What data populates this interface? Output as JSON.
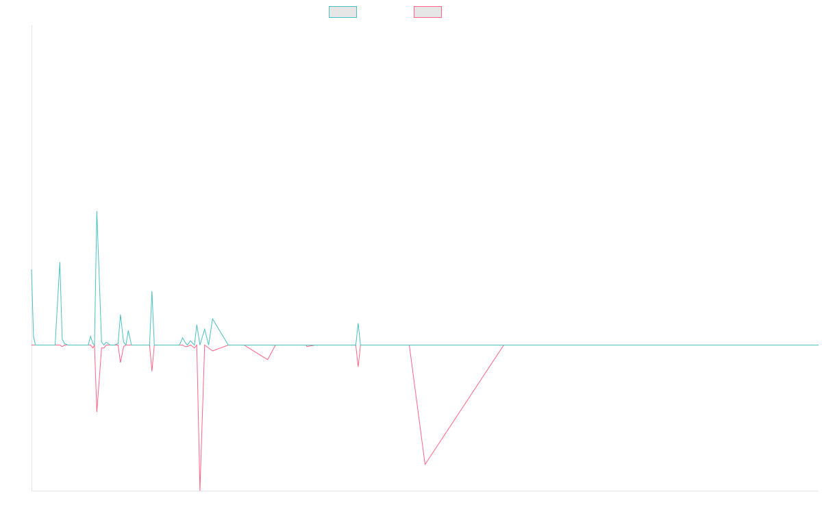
{
  "colors": {
    "series_a": "#4bc0c0",
    "series_b": "#ff6384",
    "legend_fill": "#e6e6e6",
    "axis": "#e5e5e5",
    "background": "#ffffff"
  },
  "chart_data": {
    "type": "line",
    "grid": false,
    "legend_position": "top-center",
    "xlim": [
      0,
      100
    ],
    "ylim": [
      -1,
      2.2
    ],
    "x": [
      0,
      0.25,
      0.5,
      1,
      2,
      3,
      3.6,
      3.9,
      4.2,
      4.6,
      6,
      7.2,
      7.5,
      7.8,
      8,
      8.3,
      8.9,
      9.2,
      9.5,
      10,
      10.5,
      11,
      11.3,
      11.7,
      12,
      12.3,
      12.7,
      13,
      13.3,
      13.8,
      14.5,
      15,
      15.3,
      15.6,
      16,
      16.4,
      17,
      18,
      18.8,
      19.2,
      19.5,
      19.8,
      20.2,
      20.7,
      21,
      21.4,
      22,
      22.5,
      23,
      25,
      26,
      26.3,
      26.7,
      27,
      30,
      31,
      31.6,
      32,
      33,
      34,
      34.9,
      35,
      36,
      38,
      40,
      41.2,
      41.5,
      41.8,
      43,
      43.5,
      44,
      45,
      46.5,
      48,
      50,
      60,
      70,
      80,
      90,
      100
    ],
    "series": [
      {
        "values": [
          0.52,
          0.06,
          0,
          0,
          0,
          0,
          0.57,
          0.04,
          0.01,
          0,
          0,
          0,
          0.06,
          0.01,
          0,
          0.92,
          0.02,
          0,
          0.02,
          0,
          0,
          0.01,
          0.21,
          0.02,
          0,
          0.1,
          0,
          0,
          0,
          0,
          0,
          0,
          0.37,
          0,
          0,
          0,
          0,
          0,
          0,
          0.05,
          0.02,
          0,
          0.03,
          0,
          0.14,
          0,
          0.11,
          0,
          0.18,
          0,
          0,
          0,
          0,
          0,
          0,
          0,
          0,
          0,
          0,
          0,
          0,
          0,
          0,
          0,
          0,
          0,
          0.15,
          0,
          0,
          0,
          0,
          0,
          0,
          0,
          0,
          0,
          0,
          0,
          0,
          0
        ]
      },
      {
        "values": [
          0,
          0,
          0,
          0,
          0,
          0,
          0,
          -0.01,
          0,
          0,
          0,
          0,
          0,
          -0.02,
          0,
          -0.46,
          -0.02,
          -0.02,
          0,
          0,
          0,
          0,
          -0.12,
          -0.01,
          0,
          0,
          0,
          0,
          0,
          0,
          0,
          0,
          -0.18,
          0,
          0,
          0,
          0,
          0,
          0,
          0,
          -0.01,
          -0.01,
          0,
          -0.02,
          0,
          -1.0,
          0,
          -0.02,
          -0.04,
          0,
          0,
          0,
          0,
          0,
          -0.1,
          0,
          0,
          0,
          0,
          0,
          0,
          -0.01,
          0,
          0,
          0,
          0,
          -0.15,
          0,
          0,
          0,
          0,
          0,
          0,
          0,
          -0.82,
          0,
          0,
          0,
          0,
          0
        ]
      }
    ]
  }
}
